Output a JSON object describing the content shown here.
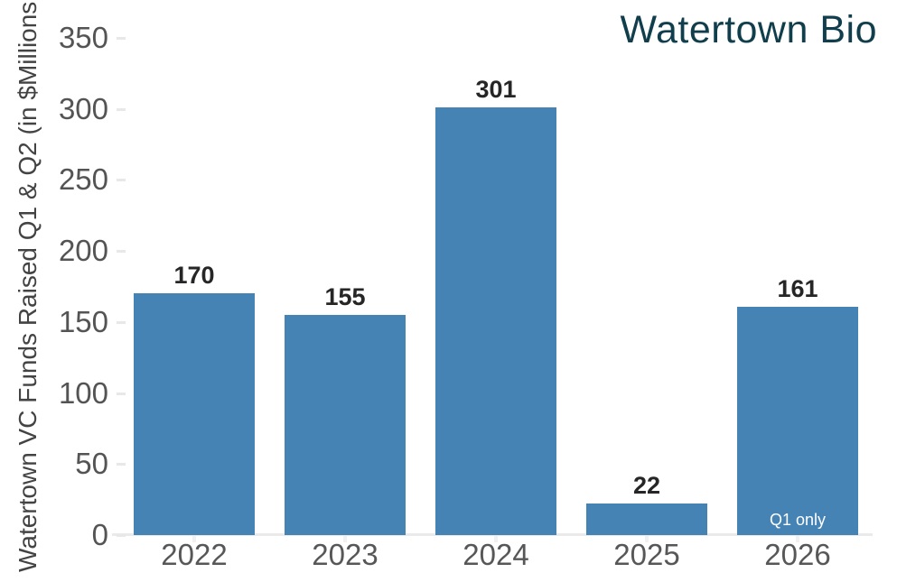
{
  "chart_data": {
    "type": "bar",
    "title": "Watertown Bio",
    "y_axis_label": "Watertown VC Funds Raised Q1 & Q2 (in $Millions",
    "categories": [
      "2022",
      "2023",
      "2024",
      "2025",
      "2026"
    ],
    "values": [
      170,
      155,
      301,
      22,
      161
    ],
    "value_labels": [
      "170",
      "155",
      "301",
      "22",
      "161"
    ],
    "bar_annotations": [
      "",
      "",
      "",
      "",
      "Q1 only"
    ],
    "y_ticks": [
      0,
      50,
      100,
      150,
      200,
      250,
      300,
      350
    ],
    "ylim": [
      0,
      350
    ],
    "grid": false,
    "legend": "none",
    "layout_hints": {
      "bar_color": "#4583b5",
      "title_color": "#113e4c",
      "axis_text_color": "#545454",
      "value_label_color": "#262626",
      "annotation_text_color": "#ffffff",
      "baseline_color": "#eaeaea",
      "title_position": "top-right",
      "y_axis_label_rotated": true
    }
  }
}
